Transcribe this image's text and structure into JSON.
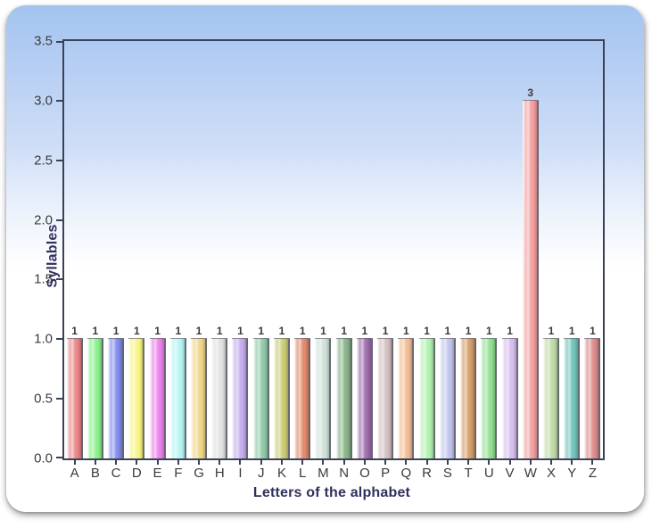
{
  "chart_data": {
    "type": "bar",
    "title": "",
    "xlabel": "Letters of the alphabet",
    "ylabel": "Syllables",
    "categories": [
      "A",
      "B",
      "C",
      "D",
      "E",
      "F",
      "G",
      "H",
      "I",
      "J",
      "K",
      "L",
      "M",
      "N",
      "O",
      "P",
      "Q",
      "R",
      "S",
      "T",
      "U",
      "V",
      "W",
      "X",
      "Y",
      "Z"
    ],
    "values": [
      1,
      1,
      1,
      1,
      1,
      1,
      1,
      1,
      1,
      1,
      1,
      1,
      1,
      1,
      1,
      1,
      1,
      1,
      1,
      1,
      1,
      1,
      3,
      1,
      1,
      1
    ],
    "bar_colors": [
      "#e88383",
      "#86ef86",
      "#7d88e8",
      "#f7f37f",
      "#ea7de8",
      "#b3f4f4",
      "#eed584",
      "#dfdfdf",
      "#c2a9ec",
      "#8cc9a6",
      "#c9c972",
      "#e08767",
      "#cce0d8",
      "#84b284",
      "#9a6aaa",
      "#d2bcbc",
      "#f2ba91",
      "#aef0ae",
      "#bfc3ea",
      "#d39a62",
      "#8ede8e",
      "#d4bcec",
      "#f29c9c",
      "#bcd8a2",
      "#6cc2b8",
      "#da8888"
    ],
    "value_labels": [
      "1",
      "1",
      "1",
      "1",
      "1",
      "1",
      "1",
      "1",
      "1",
      "1",
      "1",
      "1",
      "1",
      "1",
      "1",
      "1",
      "1",
      "1",
      "1",
      "1",
      "1",
      "1",
      "3",
      "1",
      "1",
      "1"
    ],
    "ylim": [
      0,
      3.5
    ],
    "yticks": [
      "0.0",
      "0.5",
      "1.0",
      "1.5",
      "2.0",
      "2.5",
      "3.0",
      "3.5"
    ],
    "grid": false,
    "legend": "none",
    "style": {
      "plot_border_color": "#3b4258",
      "tick_label_color": "#3a3a3a",
      "value_label_color": "#3a3a3a",
      "axis_title_color": "#30305e",
      "card_gradient_top": "#a3c4ef",
      "card_gradient_bottom": "#ffffff",
      "page_background": "#ffffff"
    }
  }
}
